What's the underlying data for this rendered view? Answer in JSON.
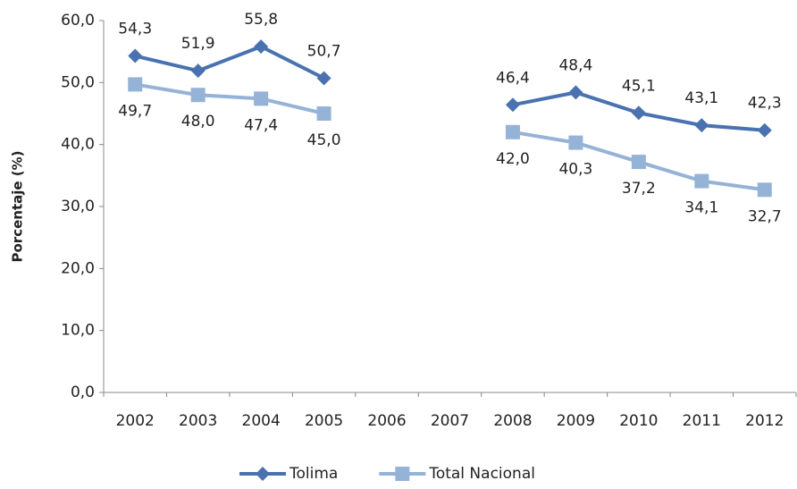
{
  "chart_data": {
    "type": "line",
    "y_label": "Porcentaje (%)",
    "categories": [
      "2002",
      "2003",
      "2004",
      "2005",
      "2006",
      "2007",
      "2008",
      "2009",
      "2010",
      "2011",
      "2012"
    ],
    "series": [
      {
        "name": "Tolima",
        "color": "#4a72b0",
        "marker": "diamond",
        "label_position": "above",
        "values": [
          54.3,
          51.9,
          55.8,
          50.7,
          null,
          null,
          46.4,
          48.4,
          45.1,
          43.1,
          42.3
        ],
        "value_labels": [
          "54,3",
          "51,9",
          "55,8",
          "50,7",
          null,
          null,
          "46,4",
          "48,4",
          "45,1",
          "43,1",
          "42,3"
        ]
      },
      {
        "name": "Total Nacional",
        "color": "#95b3d7",
        "marker": "square",
        "label_position": "below",
        "values": [
          49.7,
          48.0,
          47.4,
          45.0,
          null,
          null,
          42.0,
          40.3,
          37.2,
          34.1,
          32.7
        ],
        "value_labels": [
          "49,7",
          "48,0",
          "47,4",
          "45,0",
          null,
          null,
          "42,0",
          "40,3",
          "37,2",
          "34,1",
          "32,7"
        ]
      }
    ],
    "ylim": [
      0,
      60
    ],
    "yticks": [
      {
        "value": 0,
        "label": "0,0"
      },
      {
        "value": 10,
        "label": "10,0"
      },
      {
        "value": 20,
        "label": "20,0"
      },
      {
        "value": 30,
        "label": "30,0"
      },
      {
        "value": 40,
        "label": "40,0"
      },
      {
        "value": 50,
        "label": "50,0"
      },
      {
        "value": 60,
        "label": "60,0"
      }
    ],
    "grid": false,
    "legend": "bottom"
  }
}
